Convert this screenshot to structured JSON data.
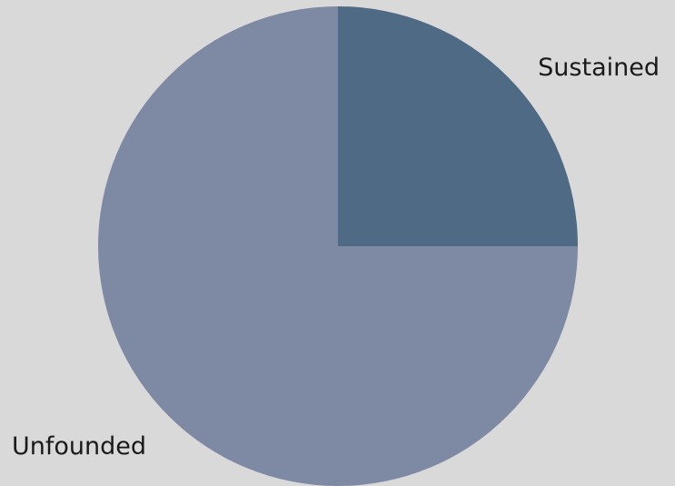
{
  "chart_data": {
    "type": "pie",
    "slices": [
      {
        "label": "Sustained",
        "value": 25,
        "color": "#4f6a84"
      },
      {
        "label": "Unfounded",
        "value": 75,
        "color": "#7e8aa3"
      }
    ],
    "start_angle_degrees": 0,
    "direction": "clockwise",
    "legend": "none",
    "labels_outside": true
  }
}
